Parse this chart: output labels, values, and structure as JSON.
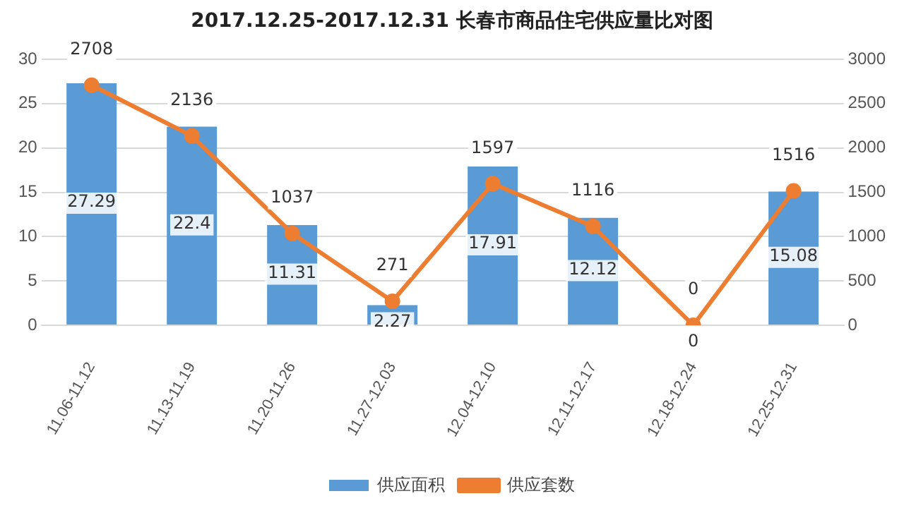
{
  "chart_data": {
    "type": "bar",
    "title": "2017.12.25-2017.12.31 长春市商品住宅供应量比对图",
    "categories": [
      "11.06-11.12",
      "11.13-11.19",
      "11.20-11.26",
      "11.27-12.03",
      "12.04-12.10",
      "12.11-12.17",
      "12.18-12.24",
      "12.25-12.31"
    ],
    "series": [
      {
        "name": "供应面积",
        "color": "#5b9bd5",
        "values": [
          27.29,
          22.4,
          11.31,
          2.27,
          17.91,
          12.12,
          0,
          15.08
        ]
      },
      {
        "name": "供应套数",
        "type": "line",
        "axis": "y2",
        "color": "#ed7d31",
        "marker": "circle",
        "values": [
          2708,
          2136,
          1037,
          271,
          1597,
          1116,
          0,
          1516
        ]
      }
    ],
    "ylim": [
      0,
      30
    ],
    "yticks": [
      0,
      5,
      10,
      15,
      20,
      25,
      30
    ],
    "y2lim": [
      0,
      3000
    ],
    "y2ticks": [
      0,
      500,
      1000,
      1500,
      2000,
      2500,
      3000
    ],
    "grid": "y",
    "legend": "bottom",
    "data_labels": true
  }
}
